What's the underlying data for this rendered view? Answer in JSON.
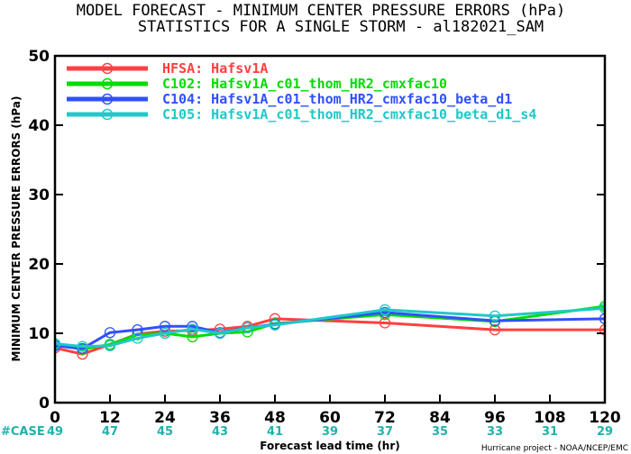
{
  "chart_data": {
    "type": "line",
    "title": "MODEL FORECAST - MINIMUM CENTER PRESSURE ERRORS (hPa)",
    "subtitle": "STATISTICS FOR A SINGLE STORM - al182021_SAM",
    "xlabel": "Forecast lead time (hr)",
    "ylabel": "MINIMUM CENTER PRESSURE ERRORS (hPa)",
    "xlim": [
      0,
      120
    ],
    "ylim": [
      0,
      50
    ],
    "xticks": [
      0,
      12,
      24,
      36,
      48,
      60,
      72,
      84,
      96,
      108,
      120
    ],
    "yticks": [
      0,
      10,
      20,
      30,
      40,
      50
    ],
    "grid": false,
    "legend_position": "top-left",
    "case_label": "#CASE",
    "case_counts": [
      "49",
      "47",
      "45",
      "43",
      "41",
      "39",
      "37",
      "35",
      "33",
      "31",
      "29"
    ],
    "series": [
      {
        "name": "HFSA: Hafsv1A",
        "color": "#ff4040",
        "x": [
          0,
          6,
          12,
          18,
          24,
          30,
          36,
          42,
          48,
          72,
          96,
          120
        ],
        "y": [
          7.9,
          7.0,
          8.4,
          9.9,
          10.3,
          10.4,
          10.6,
          11.0,
          12.1,
          11.5,
          10.5,
          10.5
        ]
      },
      {
        "name": "C102: Hafsv1A_c01_thom_HR2_cmxfac10",
        "color": "#00dd00",
        "x": [
          0,
          6,
          12,
          18,
          24,
          30,
          36,
          42,
          48,
          72,
          96,
          120
        ],
        "y": [
          8.3,
          7.7,
          8.4,
          9.8,
          10.0,
          9.5,
          10.0,
          10.2,
          11.4,
          12.7,
          11.7,
          13.9
        ]
      },
      {
        "name": "C104: Hafsv1A_c01_thom_HR2_cmxfac10_beta_d1",
        "color": "#3050ff",
        "x": [
          0,
          6,
          12,
          18,
          24,
          30,
          36,
          42,
          48,
          72,
          96,
          120
        ],
        "y": [
          8.2,
          7.8,
          10.1,
          10.5,
          11.0,
          11.0,
          10.1,
          10.8,
          11.3,
          13.0,
          11.8,
          12.1
        ]
      },
      {
        "name": "C105: Hafsv1A_c01_thom_HR2_cmxfac10_beta_d1_s4",
        "color": "#20c8c8",
        "x": [
          0,
          6,
          12,
          18,
          24,
          30,
          36,
          42,
          48,
          72,
          96,
          120
        ],
        "y": [
          8.5,
          8.1,
          8.2,
          9.3,
          10.0,
          10.6,
          10.0,
          10.8,
          11.2,
          13.4,
          12.5,
          13.6
        ]
      }
    ]
  },
  "footer": {
    "credit": "Hurricane project - NOAA/NCEP/EMC"
  }
}
